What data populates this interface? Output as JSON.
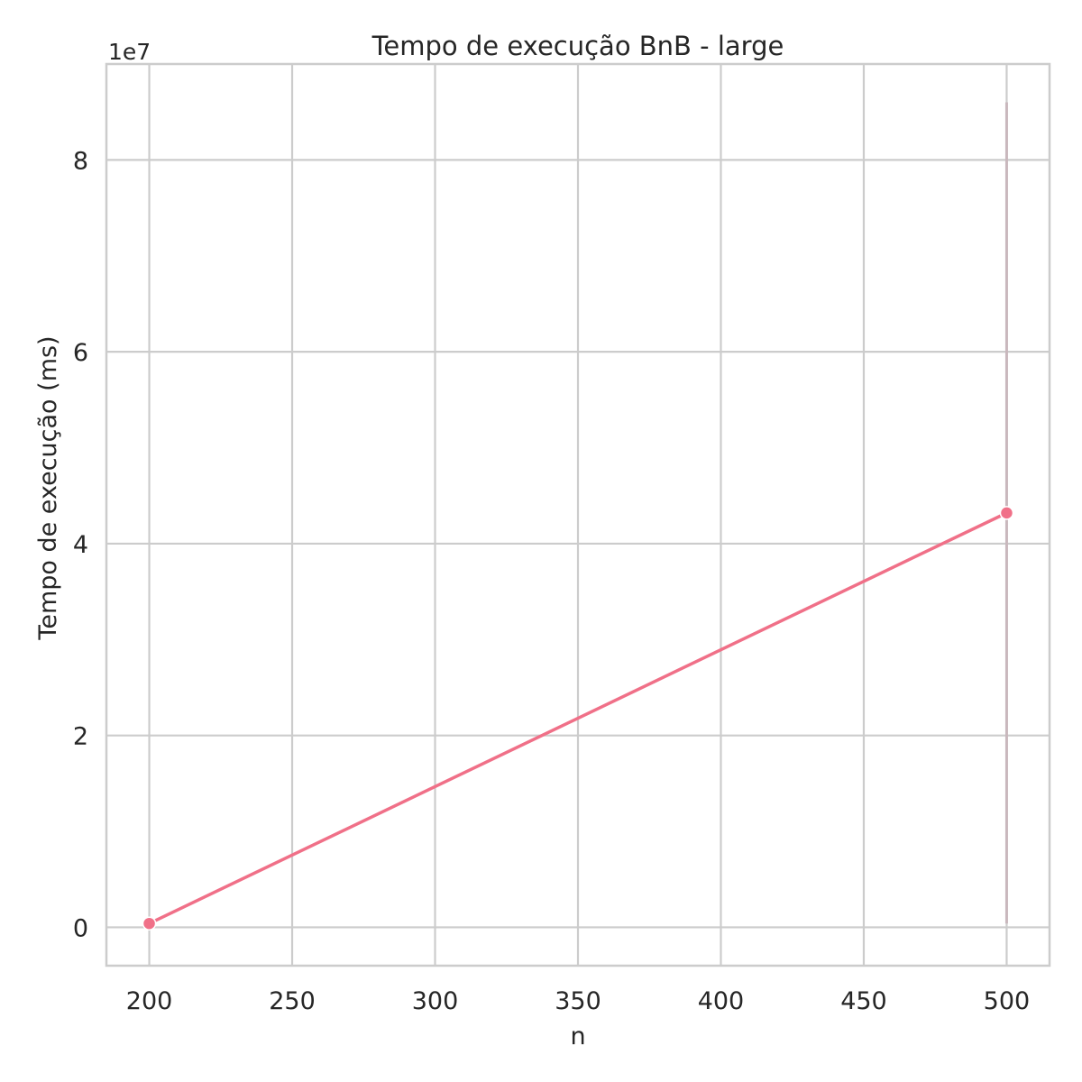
{
  "chart_data": {
    "type": "line",
    "title": "Tempo de execução BnB - large",
    "xlabel": "n",
    "ylabel": "Tempo de execução (ms)",
    "y_offset_label": "1e7",
    "x_ticks": [
      200,
      250,
      300,
      350,
      400,
      450,
      500
    ],
    "y_ticks": [
      0,
      2,
      4,
      6,
      8
    ],
    "x_tick_labels": [
      "200",
      "250",
      "300",
      "350",
      "400",
      "450",
      "500"
    ],
    "y_tick_labels": [
      "0",
      "2",
      "4",
      "6",
      "8"
    ],
    "xlim": [
      185,
      515
    ],
    "ylim": [
      -0.4,
      9.0
    ],
    "y_scale_factor": 10000000,
    "grid": true,
    "series": [
      {
        "color": "#f07088",
        "marker": "circle",
        "x": [
          200,
          500
        ],
        "y": [
          0.04,
          4.32
        ]
      }
    ],
    "annotations": [
      {
        "type": "vertical-line",
        "x": 500,
        "y_from": 0.04,
        "y_to": 8.6,
        "color": "#c9b8bd"
      }
    ]
  }
}
